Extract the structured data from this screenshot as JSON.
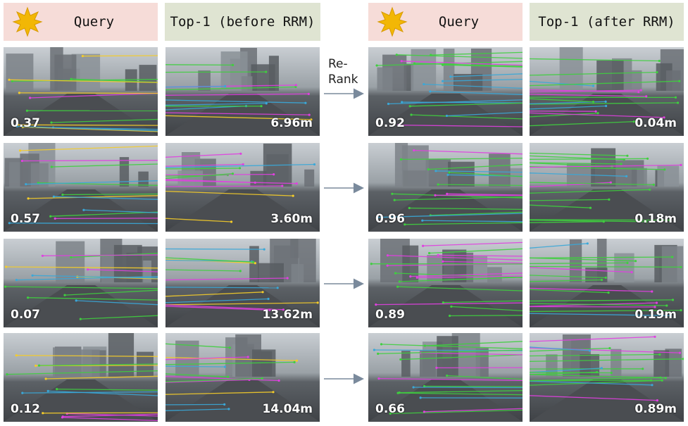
{
  "headers": {
    "query_left": "Query",
    "top1_before": "Top-1 (before RRM)",
    "query_right": "Query",
    "top1_after": "Top-1 (after RRM)"
  },
  "rerank_label": [
    "Re-",
    "Rank"
  ],
  "rows": [
    {
      "before_score": "0.37",
      "before_dist": "6.96m",
      "after_score": "0.92",
      "after_dist": "0.04m"
    },
    {
      "before_score": "0.57",
      "before_dist": "3.60m",
      "after_score": "0.96",
      "after_dist": "0.18m"
    },
    {
      "before_score": "0.07",
      "before_dist": "13.62m",
      "after_score": "0.89",
      "after_dist": "0.19m"
    },
    {
      "before_score": "0.12",
      "before_dist": "14.04m",
      "after_score": "0.66",
      "after_dist": "0.89m"
    }
  ],
  "colors": {
    "query_header_bg": "#f6dcd8",
    "top1_header_bg": "#dfe4d2",
    "star": "#f2b705",
    "arrow": "#7a8a9c",
    "match_green": "#3fcf3f",
    "match_yellow": "#f4cc2a",
    "match_magenta": "#e040e0",
    "match_cyan": "#3aa8d8"
  }
}
